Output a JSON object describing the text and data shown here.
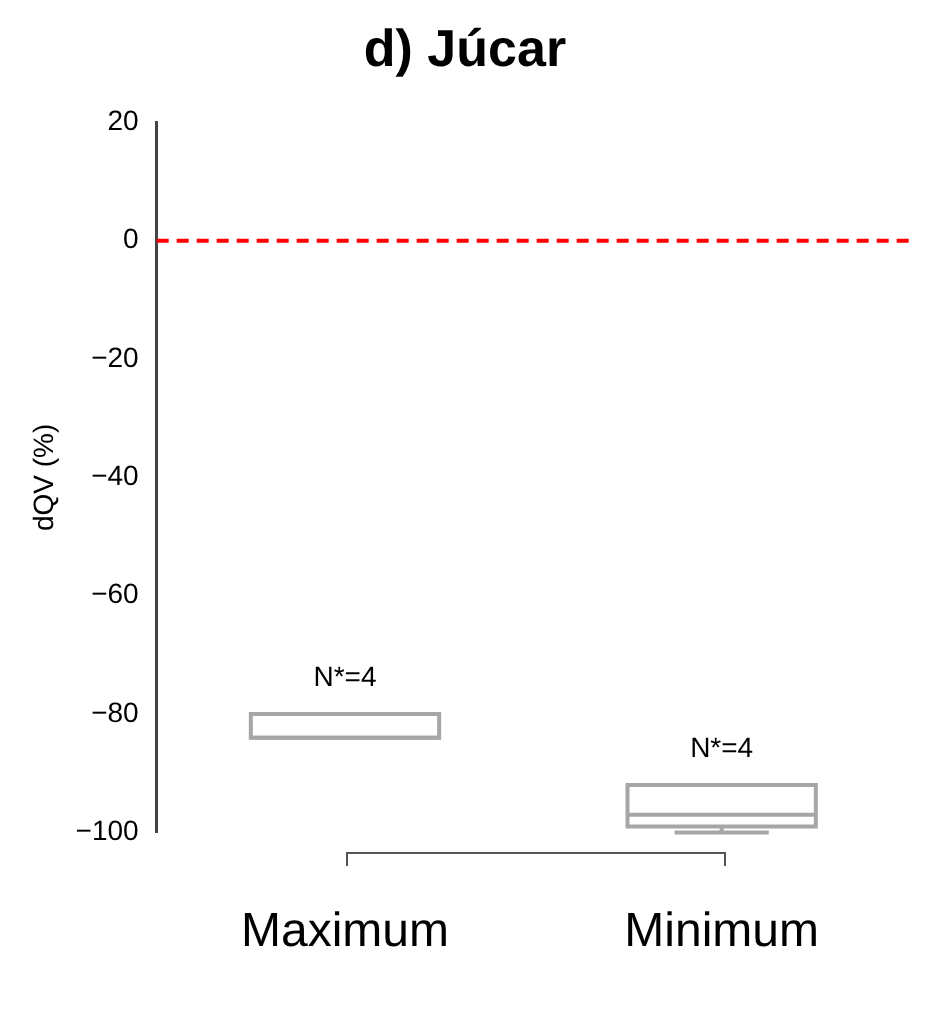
{
  "chart_data": {
    "type": "box",
    "title": "d) Júcar",
    "ylabel": "dQV (%)",
    "categories": [
      "Maximum",
      "Minimum"
    ],
    "boxes": [
      {
        "low": -84,
        "q1": -84,
        "median": -84,
        "q3": -80,
        "high": -80
      },
      {
        "low": -100,
        "q1": -99,
        "median": -97,
        "q3": -92,
        "high": -92
      }
    ],
    "color": "#a6a6a6",
    "ylim": [
      -100,
      20
    ],
    "yticks": [
      -100,
      -80,
      -60,
      -40,
      -20,
      0,
      20
    ],
    "grid": false,
    "legend": false,
    "ref_lines": [
      {
        "axis": "y",
        "value": 0,
        "color": "#ff0000",
        "line_style": "dashed"
      }
    ],
    "annotations": [
      "N*=4",
      "N*=4"
    ]
  }
}
